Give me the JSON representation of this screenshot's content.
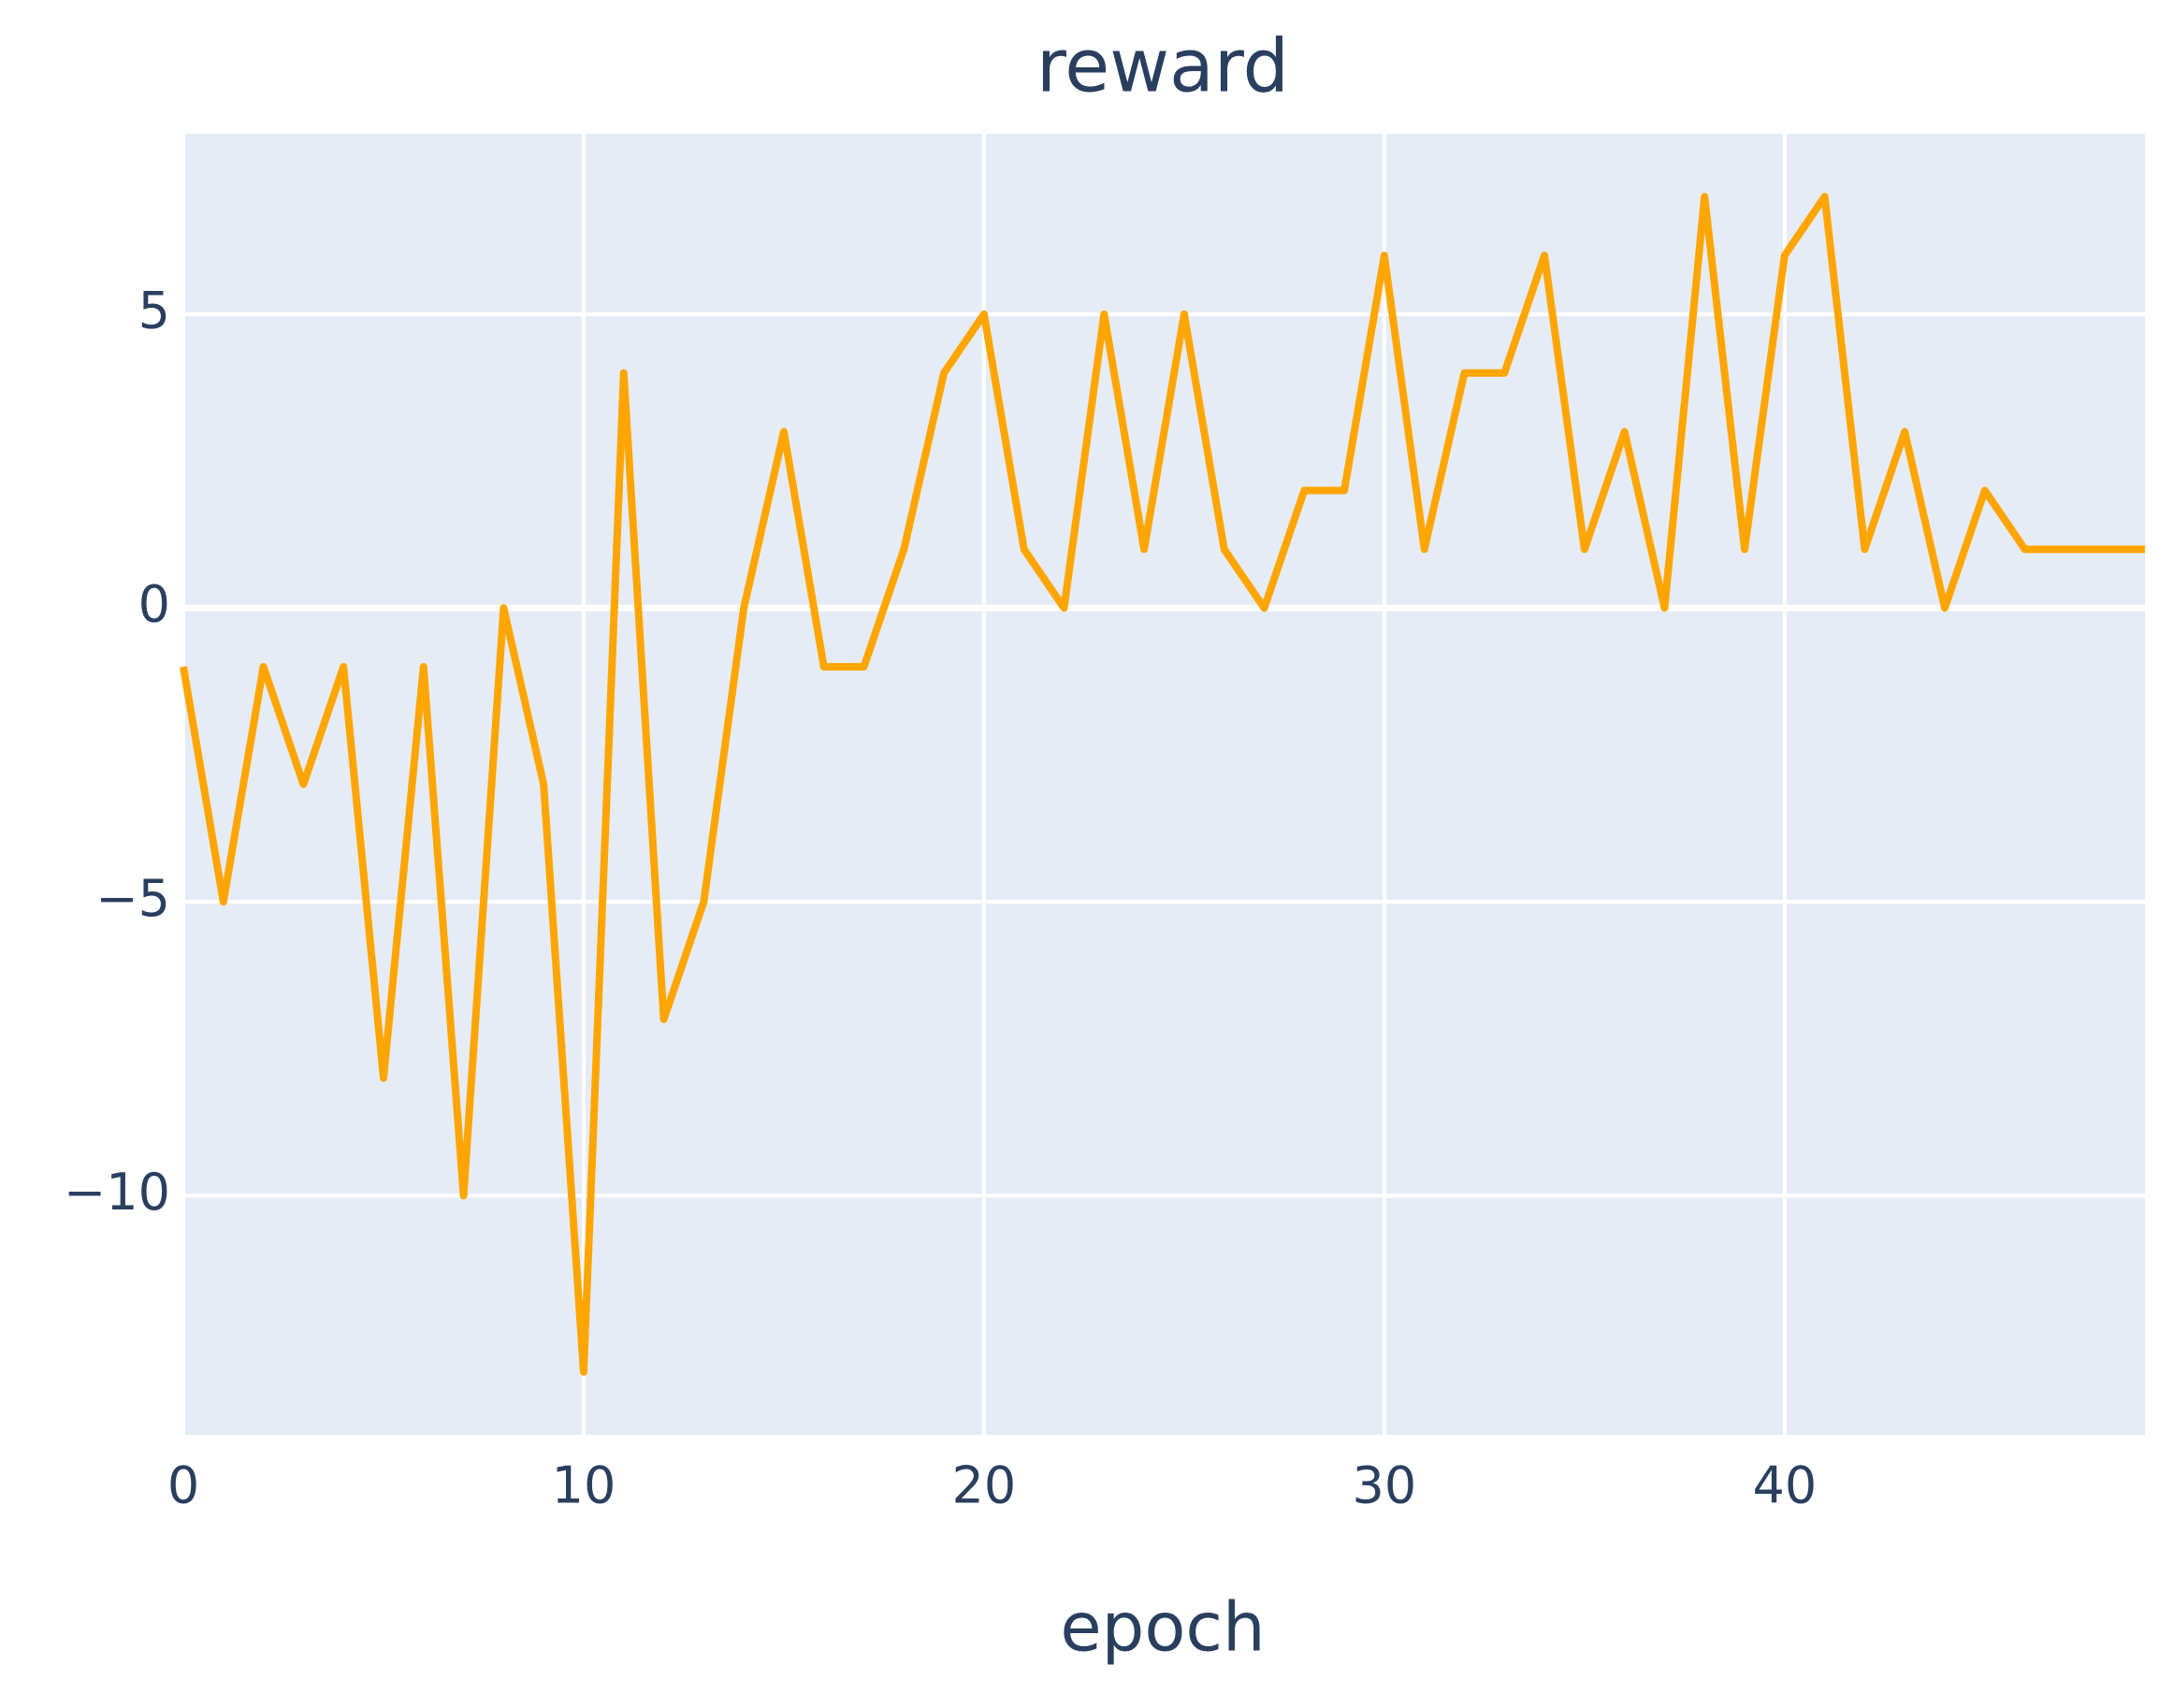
{
  "chart_data": {
    "type": "line",
    "title": "reward",
    "x_label": "epoch",
    "x": [
      0,
      1,
      2,
      3,
      4,
      5,
      6,
      7,
      8,
      9,
      10,
      11,
      12,
      13,
      14,
      15,
      16,
      17,
      18,
      19,
      20,
      21,
      22,
      23,
      24,
      25,
      26,
      27,
      28,
      29,
      30,
      31,
      32,
      33,
      34,
      35,
      36,
      37,
      38,
      39,
      40,
      41,
      42,
      43,
      44,
      45,
      46,
      47,
      48,
      49
    ],
    "series": [
      {
        "color": "#ffa500",
        "values": [
          -1,
          -5,
          -1,
          -3,
          -1,
          -8,
          -1,
          -10,
          0,
          -3,
          -13,
          4,
          -7,
          -5,
          0,
          3,
          -1,
          -1,
          1,
          4,
          5,
          1,
          0,
          5,
          1,
          5,
          1,
          0,
          2,
          2,
          6,
          1,
          4,
          4,
          6,
          1,
          3,
          0,
          7,
          1,
          6,
          7,
          1,
          3,
          0,
          2,
          1,
          1,
          1,
          1
        ]
      }
    ],
    "xlim": [
      0,
      49
    ],
    "ylim": [
      -14.07,
      8.07
    ],
    "xticks": [
      0,
      10,
      20,
      30,
      40
    ],
    "yticks": [
      5,
      0,
      {
        "value": -5,
        "label": "−5"
      },
      {
        "value": -10,
        "label": "−10"
      }
    ],
    "grid": true,
    "background": "#e5ecf6"
  }
}
